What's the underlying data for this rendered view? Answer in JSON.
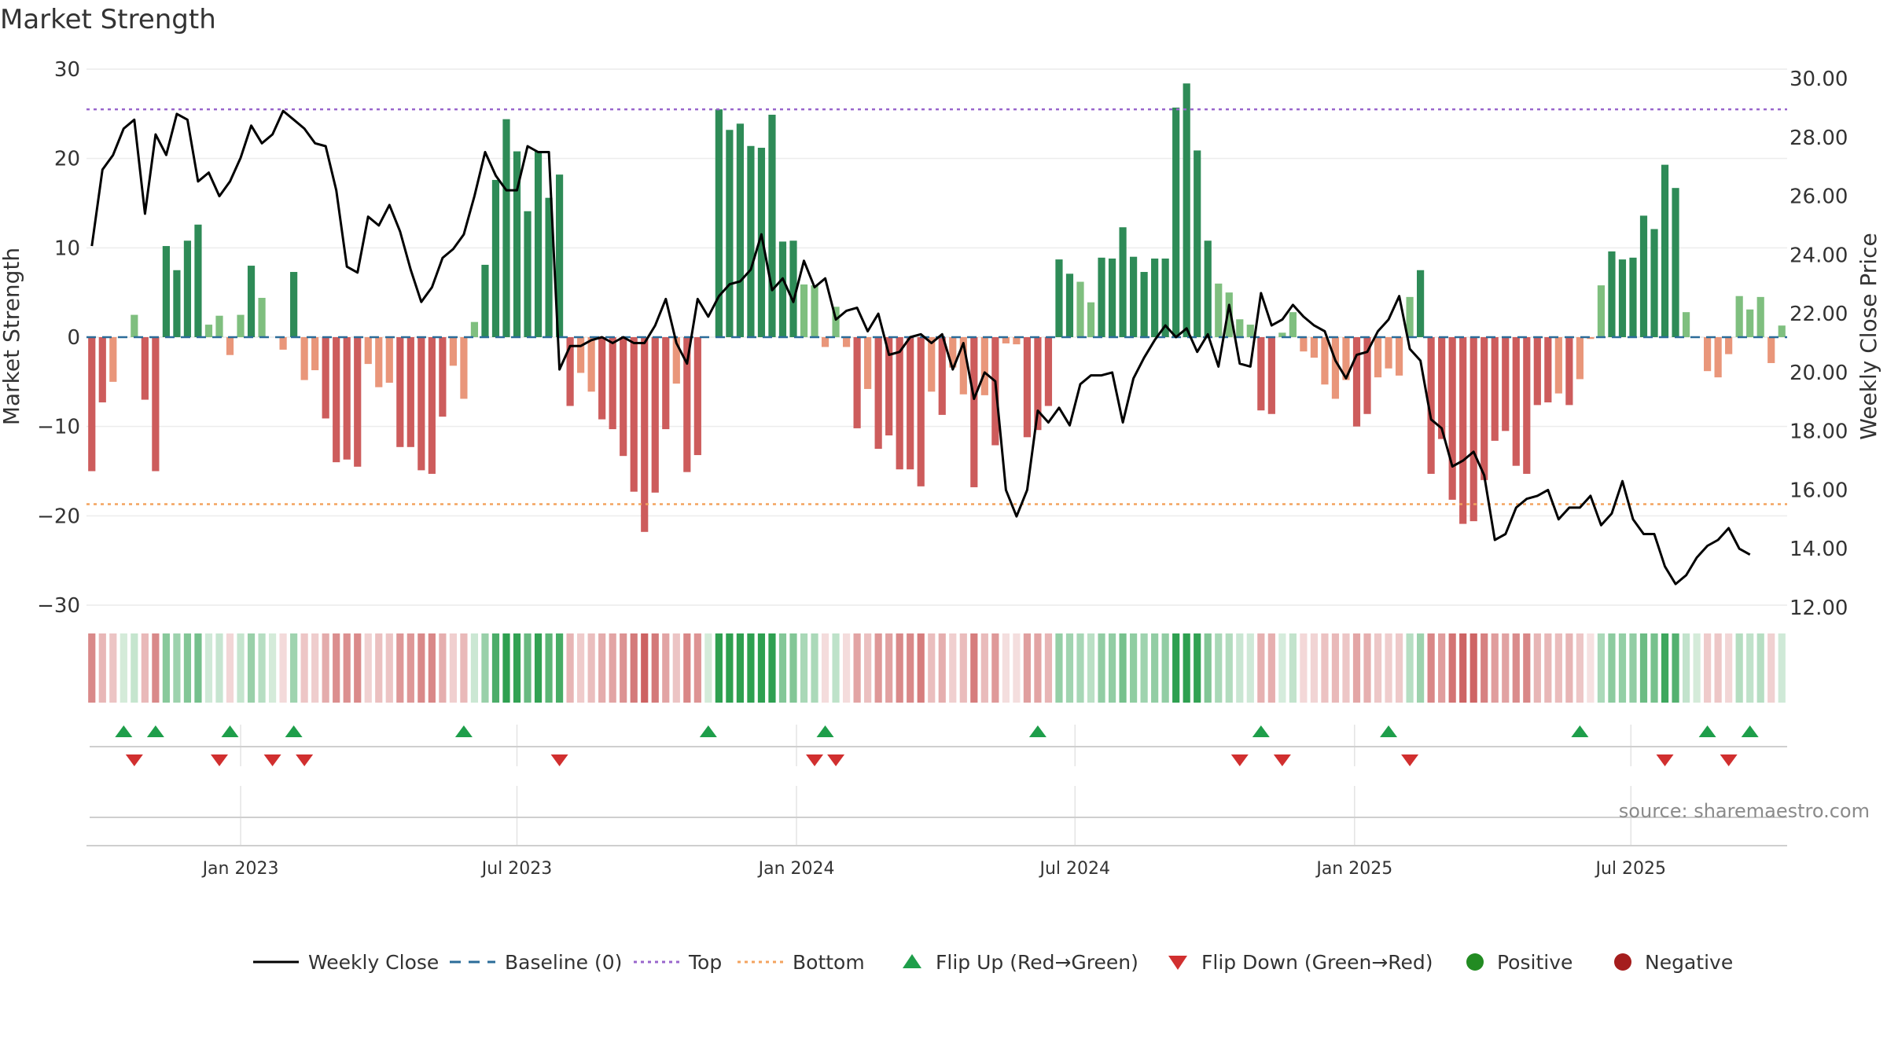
{
  "chart_data": {
    "type": "bar",
    "title": "Market Strength",
    "ylabel_left": "Market Strength",
    "ylabel_right": "Weekly Close Price",
    "source": "source: sharemaestro.com",
    "left_axis": {
      "ylim": [
        -32,
        30
      ],
      "ticks": [
        30,
        20,
        10,
        0,
        -10,
        -20,
        -30
      ],
      "tick_labels": [
        "30",
        "20",
        "10",
        "0",
        "−10",
        "−20",
        "−30"
      ]
    },
    "right_axis": {
      "ylim": [
        11.5,
        30.7
      ],
      "ticks": [
        30,
        28,
        26,
        24,
        22,
        20,
        18,
        16,
        14,
        12
      ],
      "tick_labels": [
        "30.00",
        "28.00",
        "26.00",
        "24.00",
        "22.00",
        "20.00",
        "18.00",
        "16.00",
        "14.00",
        "12.00"
      ]
    },
    "x_ticks": [
      {
        "label": "Jan 2023",
        "week": 14.5
      },
      {
        "label": "Jul 2023",
        "week": 40.5
      },
      {
        "label": "Jan 2024",
        "week": 66.8
      },
      {
        "label": "Jul 2024",
        "week": 93
      },
      {
        "label": "Jan 2025",
        "week": 119.3
      },
      {
        "label": "Jul 2025",
        "week": 145.3
      }
    ],
    "top_level": 25.5,
    "bottom_level": -18.7,
    "strength": [
      -15,
      -7.3,
      -5,
      0,
      2.5,
      -7,
      -15,
      10.2,
      7.5,
      10.8,
      12.6,
      1.4,
      2.4,
      -2,
      2.5,
      8,
      4.4,
      0,
      -1.4,
      7.3,
      -4.8,
      -3.7,
      -9.1,
      -14,
      -13.7,
      -14.5,
      -3,
      -5.6,
      -5.1,
      -12.3,
      -12.3,
      -14.9,
      -15.3,
      -8.9,
      -3.2,
      -6.9,
      1.7,
      8.1,
      17.6,
      24.4,
      20.8,
      14.1,
      20.8,
      15.6,
      18.2,
      -7.7,
      -4,
      -6.1,
      -9.2,
      -10.3,
      -13.3,
      -17.3,
      -21.8,
      -17.4,
      -10.3,
      -5.2,
      -15.1,
      -13.2,
      0,
      25.5,
      23.2,
      23.9,
      21.4,
      21.2,
      24.9,
      10.7,
      10.8,
      5.9,
      5.8,
      -1.1,
      3.4,
      -1.1,
      -10.2,
      -5.8,
      -12.5,
      -11,
      -14.8,
      -14.8,
      -16.7,
      -6.1,
      -8.7,
      -3.4,
      -6.4,
      -16.8,
      -6.5,
      -12.1,
      -0.7,
      -0.8,
      -11.2,
      -10.4,
      -7.7,
      8.7,
      7.1,
      6.2,
      3.9,
      8.9,
      8.8,
      12.3,
      9,
      7.3,
      8.8,
      8.8,
      25.7,
      28.4,
      20.9,
      10.8,
      6,
      5,
      2,
      1.4,
      -8.2,
      -8.6,
      0.5,
      2.8,
      -1.6,
      -2.3,
      -5.3,
      -6.9,
      -4.8,
      -10,
      -8.6,
      -4.5,
      -3.5,
      -4.3,
      4.5,
      7.5,
      -15.3,
      -11.4,
      -18.2,
      -20.9,
      -20.6,
      -16,
      -11.6,
      -10.5,
      -14.4,
      -15.3,
      -7.6,
      -7.3,
      -6.3,
      -7.6,
      -4.7,
      -0.2,
      5.8,
      9.6,
      8.7,
      8.9,
      13.6,
      12.1,
      19.3,
      16.7,
      2.8,
      0,
      -3.8,
      -4.5,
      -1.9,
      4.6,
      3.1,
      4.5,
      -2.9,
      1.3
    ],
    "weekly_close": [
      24.3,
      26.9,
      27.4,
      28.3,
      28.6,
      25.4,
      28.1,
      27.4,
      28.8,
      28.6,
      26.5,
      26.8,
      26,
      26.5,
      27.3,
      28.4,
      27.8,
      28.1,
      28.9,
      28.6,
      28.3,
      27.8,
      27.7,
      26.2,
      23.6,
      23.4,
      25.3,
      25,
      25.7,
      24.8,
      23.5,
      22.4,
      22.9,
      23.9,
      24.2,
      24.7,
      26,
      27.5,
      26.7,
      26.2,
      26.2,
      27.7,
      27.5,
      27.5,
      20.1,
      20.9,
      20.9,
      21.1,
      21.2,
      21,
      21.2,
      21,
      21,
      21.6,
      22.5,
      21,
      20.3,
      22.5,
      21.9,
      22.6,
      23,
      23.1,
      23.5,
      24.7,
      22.8,
      23.2,
      22.4,
      23.8,
      22.9,
      23.2,
      21.8,
      22.1,
      22.2,
      21.4,
      22,
      20.6,
      20.7,
      21.2,
      21.3,
      21,
      21.3,
      20.1,
      21,
      19.1,
      20,
      19.7,
      16,
      15.1,
      16,
      18.7,
      18.3,
      18.8,
      18.2,
      19.6,
      19.9,
      19.9,
      20,
      18.3,
      19.8,
      20.5,
      21.1,
      21.6,
      21.2,
      21.5,
      20.7,
      21.3,
      20.2,
      22.3,
      20.3,
      20.2,
      22.7,
      21.6,
      21.8,
      22.3,
      21.9,
      21.6,
      21.4,
      20.4,
      19.8,
      20.6,
      20.7,
      21.4,
      21.8,
      22.6,
      20.8,
      20.4,
      18.4,
      18.1,
      16.8,
      17,
      17.3,
      16.5,
      14.3,
      14.5,
      15.4,
      15.7,
      15.8,
      16,
      15,
      15.4,
      15.4,
      15.8,
      14.8,
      15.2,
      16.3,
      15,
      14.5,
      14.5,
      13.4,
      12.8,
      13.1,
      13.7,
      14.1,
      14.3,
      14.7,
      14,
      13.8
    ],
    "flip_up_weeks": [
      3,
      6,
      13,
      19,
      35,
      58,
      69,
      89,
      110,
      122,
      140,
      152,
      156
    ],
    "flip_down_weeks": [
      4,
      12,
      17,
      20,
      44,
      68,
      70,
      108,
      112,
      124,
      148,
      154
    ],
    "legend": [
      {
        "label": "Weekly Close",
        "color": "#000000",
        "kind": "line"
      },
      {
        "label": "Baseline (0)",
        "color": "#2b6c99",
        "kind": "dash"
      },
      {
        "label": "Top",
        "color": "#9966cc",
        "kind": "dot"
      },
      {
        "label": "Bottom",
        "color": "#f3a35f",
        "kind": "dot"
      },
      {
        "label": "Flip Up (Red→Green)",
        "color": "#1e9e4a",
        "kind": "tri-up"
      },
      {
        "label": "Flip Down (Green→Red)",
        "color": "#d12f2f",
        "kind": "tri-down"
      },
      {
        "label": "Positive",
        "color": "#228b22",
        "kind": "dot-marker"
      },
      {
        "label": "Negative",
        "color": "#a51d1d",
        "kind": "dot-marker"
      }
    ],
    "colors": {
      "pos_strong": "#2e8b57",
      "pos_weak": "#7fbf7f",
      "neg_strong": "#cd5c5c",
      "neg_weak": "#e9967a",
      "price_line": "#000000",
      "top_line": "#9966cc",
      "bottom_line": "#f3a35f",
      "baseline": "#2b6c99",
      "flip_up": "#1e9e4a",
      "flip_down": "#d12f2f"
    }
  }
}
